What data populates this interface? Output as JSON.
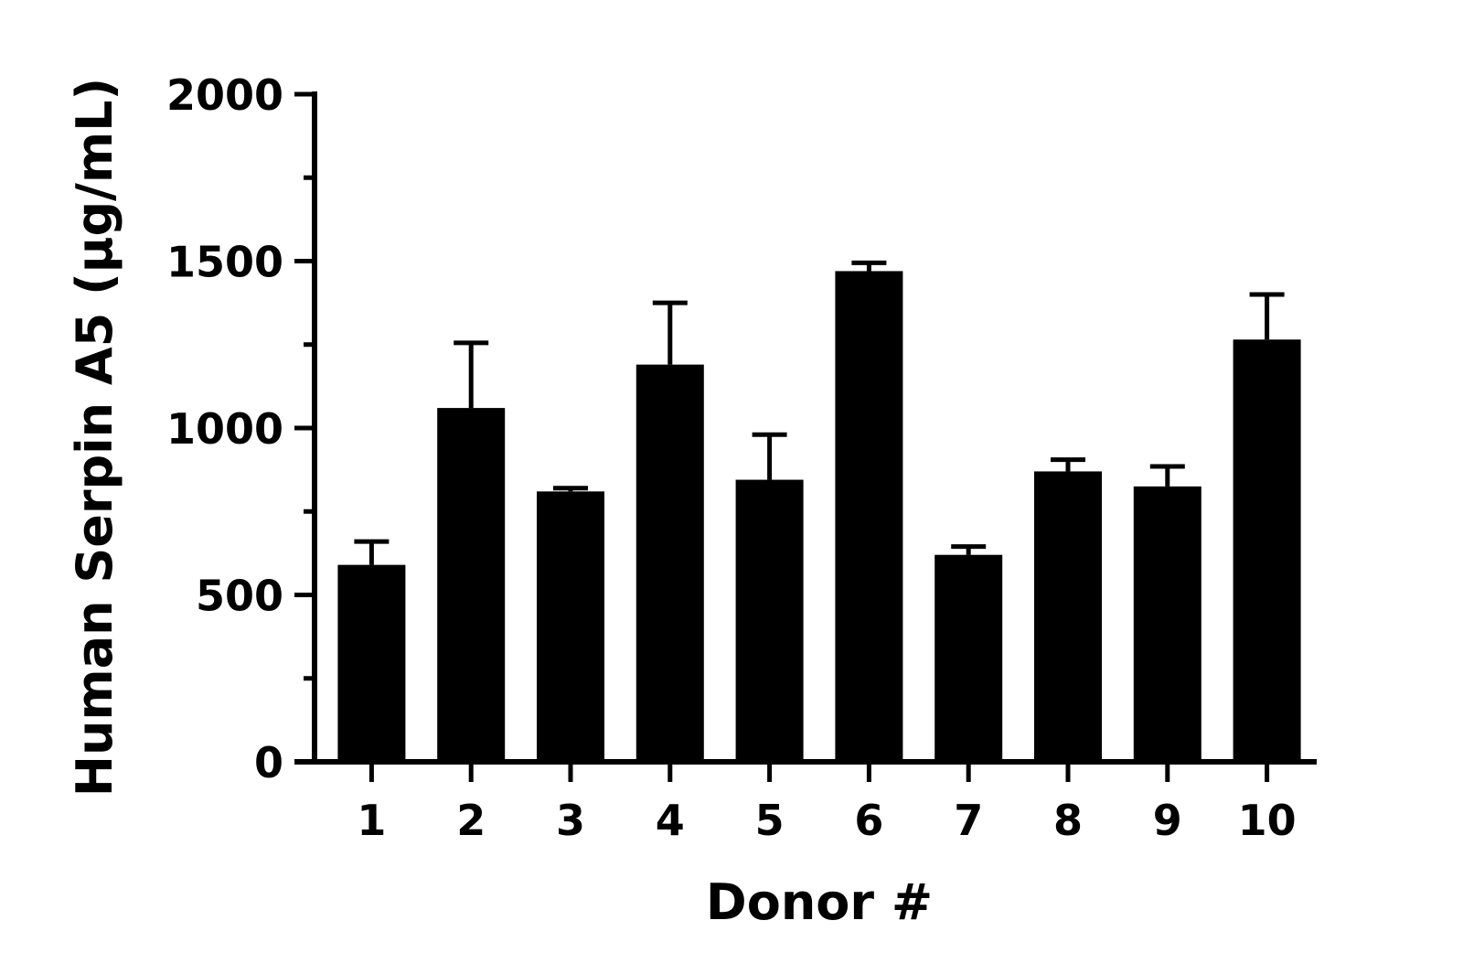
{
  "chart_data": {
    "type": "bar",
    "title": "",
    "xlabel": "Donor #",
    "ylabel": "Human Serpin A5 (µg/mL)",
    "categories": [
      "1",
      "2",
      "3",
      "4",
      "5",
      "6",
      "7",
      "8",
      "9",
      "10"
    ],
    "values": [
      590,
      1060,
      810,
      1190,
      845,
      1470,
      620,
      870,
      825,
      1265
    ],
    "error_upper": [
      660,
      1255,
      820,
      1375,
      980,
      1495,
      645,
      905,
      885,
      1400
    ],
    "ylim": [
      0,
      2000
    ],
    "y_major_ticks": [
      0,
      500,
      1000,
      1500,
      2000
    ],
    "y_minor_ticks": [
      250,
      750,
      1250,
      1750
    ],
    "y_tick_labels": [
      "0",
      "500",
      "1000",
      "1500",
      "2000"
    ],
    "grid": false,
    "legend": "none",
    "colors": {
      "bar": "#000000",
      "axis": "#000000",
      "background": "#ffffff"
    }
  }
}
